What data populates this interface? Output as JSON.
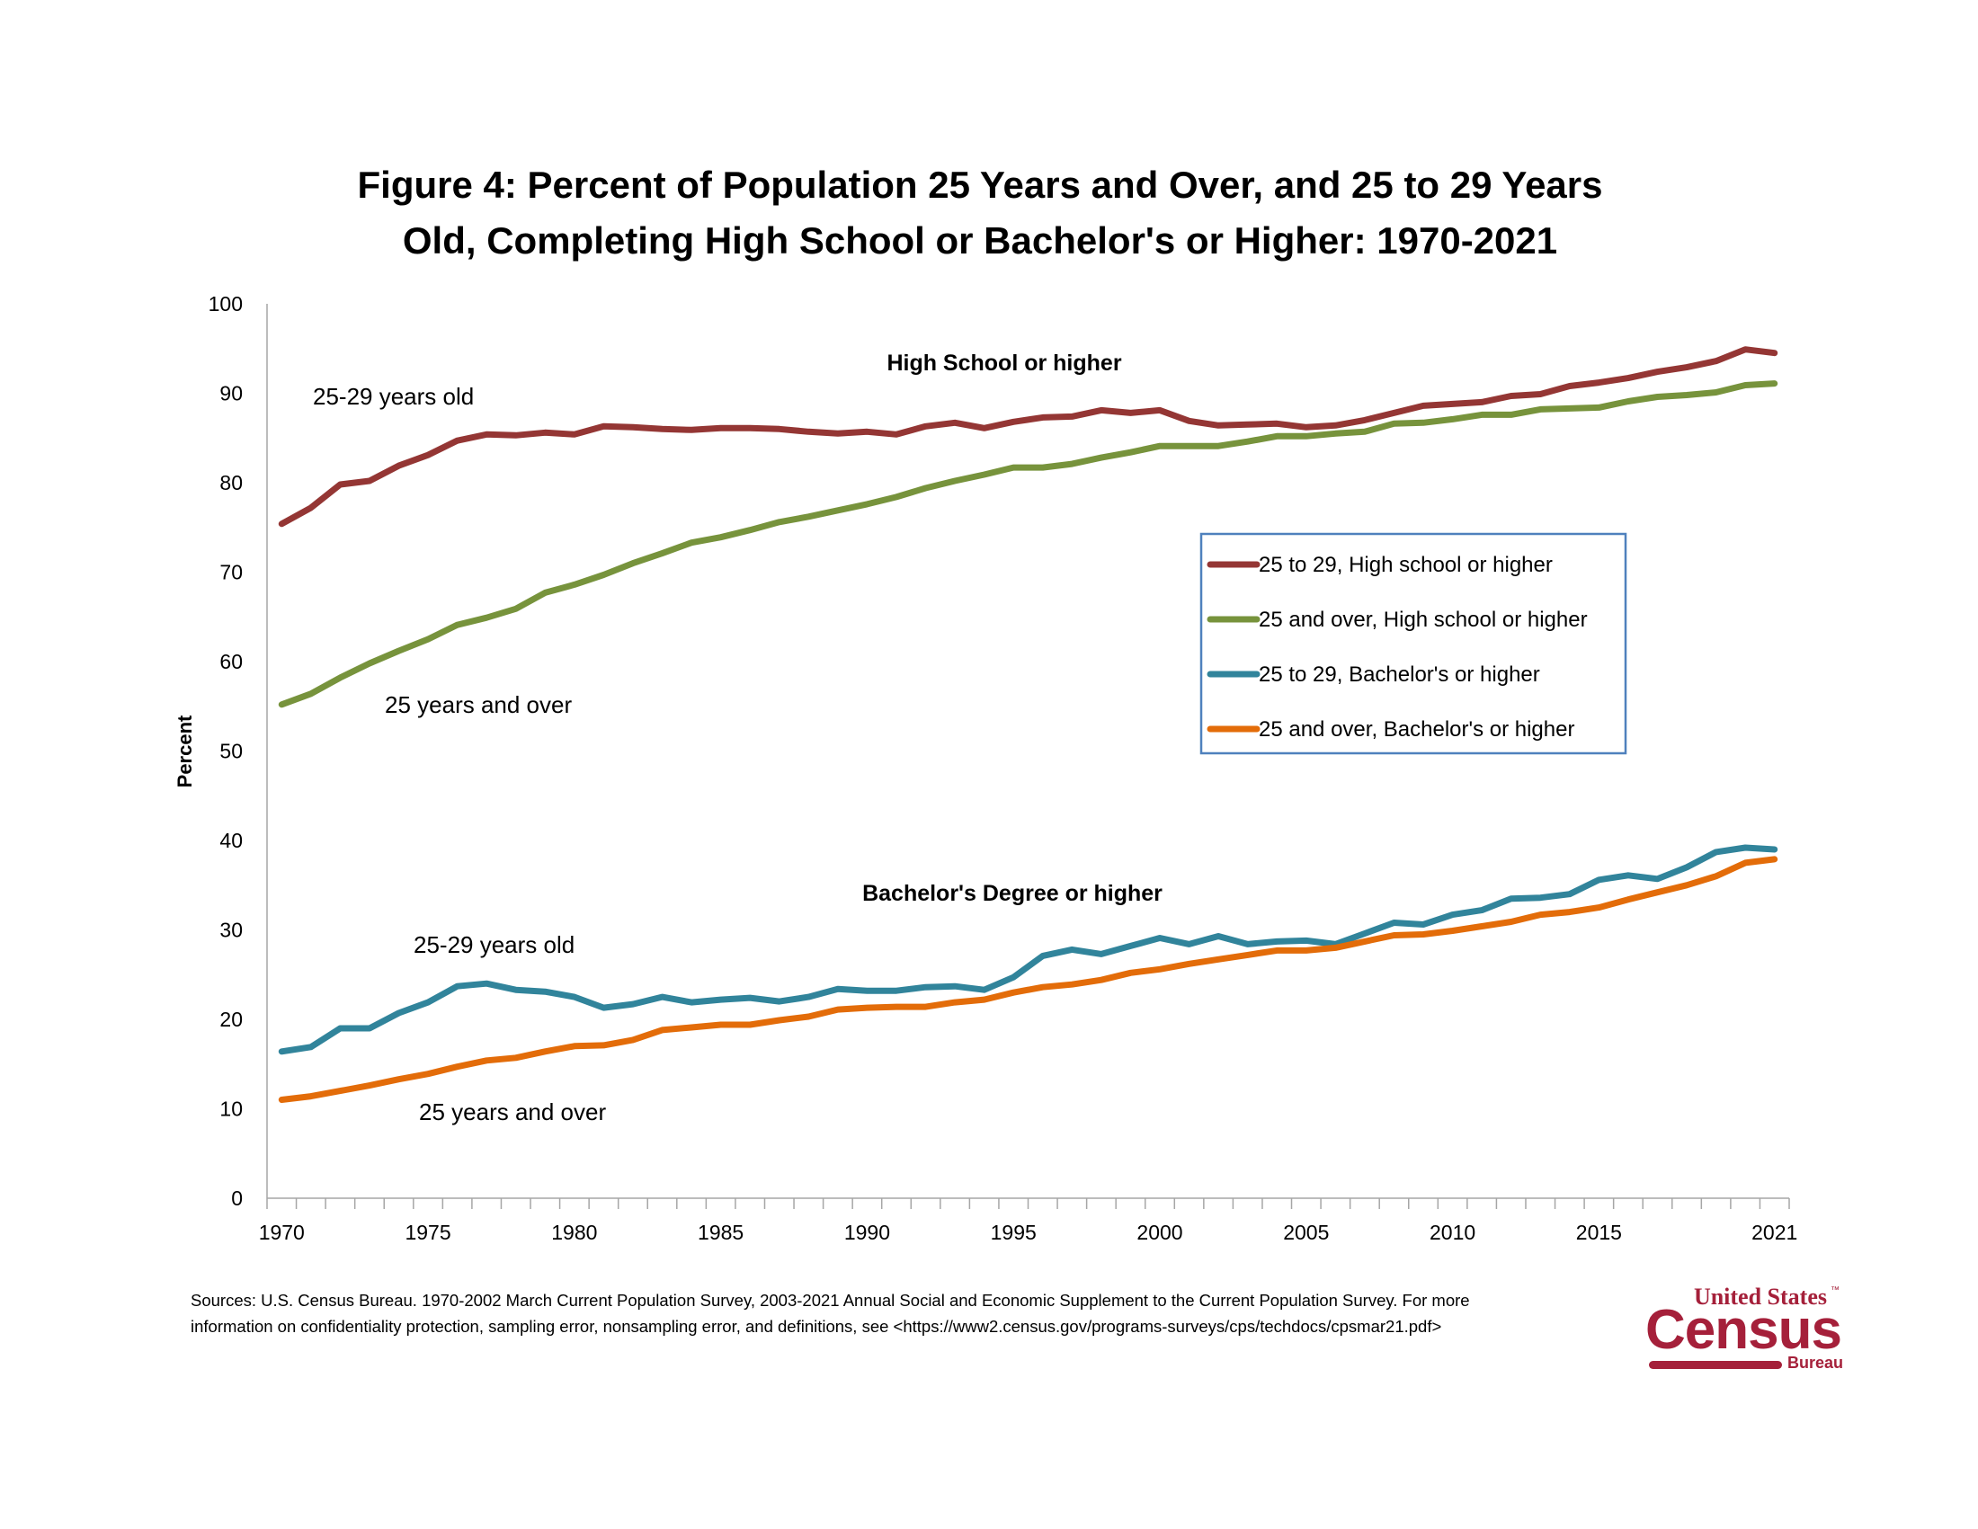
{
  "chart_data": {
    "type": "line",
    "title": [
      "Figure 4: Percent of Population 25 Years and Over, and 25 to 29 Years",
      "Old, Completing High School or Bachelor's or Higher: 1970-2021"
    ],
    "xlabel": "",
    "ylabel": "Percent",
    "ylim": [
      0,
      100
    ],
    "yticks": [
      0,
      10,
      20,
      30,
      40,
      50,
      60,
      70,
      80,
      90,
      100
    ],
    "x": [
      1970,
      1971,
      1972,
      1973,
      1974,
      1975,
      1976,
      1977,
      1978,
      1979,
      1980,
      1981,
      1982,
      1983,
      1984,
      1985,
      1986,
      1987,
      1988,
      1989,
      1990,
      1991,
      1992,
      1993,
      1994,
      1995,
      1996,
      1997,
      1998,
      1999,
      2000,
      2001,
      2002,
      2003,
      2004,
      2005,
      2006,
      2007,
      2008,
      2009,
      2010,
      2011,
      2012,
      2013,
      2014,
      2015,
      2016,
      2017,
      2018,
      2019,
      2020,
      2021
    ],
    "xtick_labels": [
      "1970",
      "1975",
      "1980",
      "1985",
      "1990",
      "1995",
      "2000",
      "2005",
      "2010",
      "2015",
      "2021"
    ],
    "grid": false,
    "legend_position": "right-center",
    "series": [
      {
        "name": "25 to 29, High school or higher",
        "color": "#943634",
        "values": [
          75.4,
          77.2,
          79.8,
          80.2,
          81.9,
          83.1,
          84.7,
          85.4,
          85.3,
          85.6,
          85.4,
          86.3,
          86.2,
          86.0,
          85.9,
          86.1,
          86.1,
          86.0,
          85.7,
          85.5,
          85.7,
          85.4,
          86.3,
          86.7,
          86.1,
          86.8,
          87.3,
          87.4,
          88.1,
          87.8,
          88.1,
          86.9,
          86.4,
          86.5,
          86.6,
          86.2,
          86.4,
          87.0,
          87.8,
          88.6,
          88.8,
          89.0,
          89.7,
          89.9,
          90.8,
          91.2,
          91.7,
          92.4,
          92.9,
          93.6,
          94.9,
          94.5
        ]
      },
      {
        "name": "25 and over, High school or higher",
        "color": "#77933C",
        "values": [
          55.2,
          56.4,
          58.2,
          59.8,
          61.2,
          62.5,
          64.1,
          64.9,
          65.9,
          67.7,
          68.6,
          69.7,
          71.0,
          72.1,
          73.3,
          73.9,
          74.7,
          75.6,
          76.2,
          76.9,
          77.6,
          78.4,
          79.4,
          80.2,
          80.9,
          81.7,
          81.7,
          82.1,
          82.8,
          83.4,
          84.1,
          84.1,
          84.1,
          84.6,
          85.2,
          85.2,
          85.5,
          85.7,
          86.6,
          86.7,
          87.1,
          87.6,
          87.6,
          88.2,
          88.3,
          88.4,
          89.1,
          89.6,
          89.8,
          90.1,
          90.9,
          91.1
        ]
      },
      {
        "name": "25 to 29, Bachelor's or higher",
        "color": "#31849B",
        "values": [
          16.4,
          16.9,
          19.0,
          19.0,
          20.7,
          21.9,
          23.7,
          24.0,
          23.3,
          23.1,
          22.5,
          21.3,
          21.7,
          22.5,
          21.9,
          22.2,
          22.4,
          22.0,
          22.5,
          23.4,
          23.2,
          23.2,
          23.6,
          23.7,
          23.3,
          24.7,
          27.1,
          27.8,
          27.3,
          28.2,
          29.1,
          28.4,
          29.3,
          28.4,
          28.7,
          28.8,
          28.4,
          29.6,
          30.8,
          30.6,
          31.7,
          32.2,
          33.5,
          33.6,
          34.0,
          35.6,
          36.1,
          35.7,
          37.0,
          38.7,
          39.2,
          39.0
        ]
      },
      {
        "name": "25 and over, Bachelor's or higher",
        "color": "#E36C09",
        "values": [
          11.0,
          11.4,
          12.0,
          12.6,
          13.3,
          13.9,
          14.7,
          15.4,
          15.7,
          16.4,
          17.0,
          17.1,
          17.7,
          18.8,
          19.1,
          19.4,
          19.4,
          19.9,
          20.3,
          21.1,
          21.3,
          21.4,
          21.4,
          21.9,
          22.2,
          23.0,
          23.6,
          23.9,
          24.4,
          25.2,
          25.6,
          26.2,
          26.7,
          27.2,
          27.7,
          27.7,
          28.0,
          28.7,
          29.4,
          29.5,
          29.9,
          30.4,
          30.9,
          31.7,
          32.0,
          32.5,
          33.4,
          34.2,
          35.0,
          36.0,
          37.5,
          37.9
        ]
      }
    ],
    "annotations": {
      "hs_group": "High School or higher",
      "ba_group": "Bachelor's Degree or higher",
      "hs_young": "25-29 years old",
      "hs_old": "25 years and over",
      "ba_young": "25-29 years old",
      "ba_old": "25 years and over"
    }
  },
  "legend_border_color": "#4F81BD",
  "footer": {
    "sources": "Sources:  U.S. Census Bureau. 1970-2002 March Current Population Survey, 2003-2021 Annual Social and Economic Supplement to the Current Population Survey. For more information on confidentiality protection, sampling error, nonsampling error, and definitions, see <https://www2.census.gov/programs-surveys/cps/techdocs/cpsmar21.pdf>"
  },
  "logo": {
    "line1": "United States",
    "tm": "™",
    "line2": "Census",
    "line3": "Bureau",
    "color": "#A5203A"
  }
}
